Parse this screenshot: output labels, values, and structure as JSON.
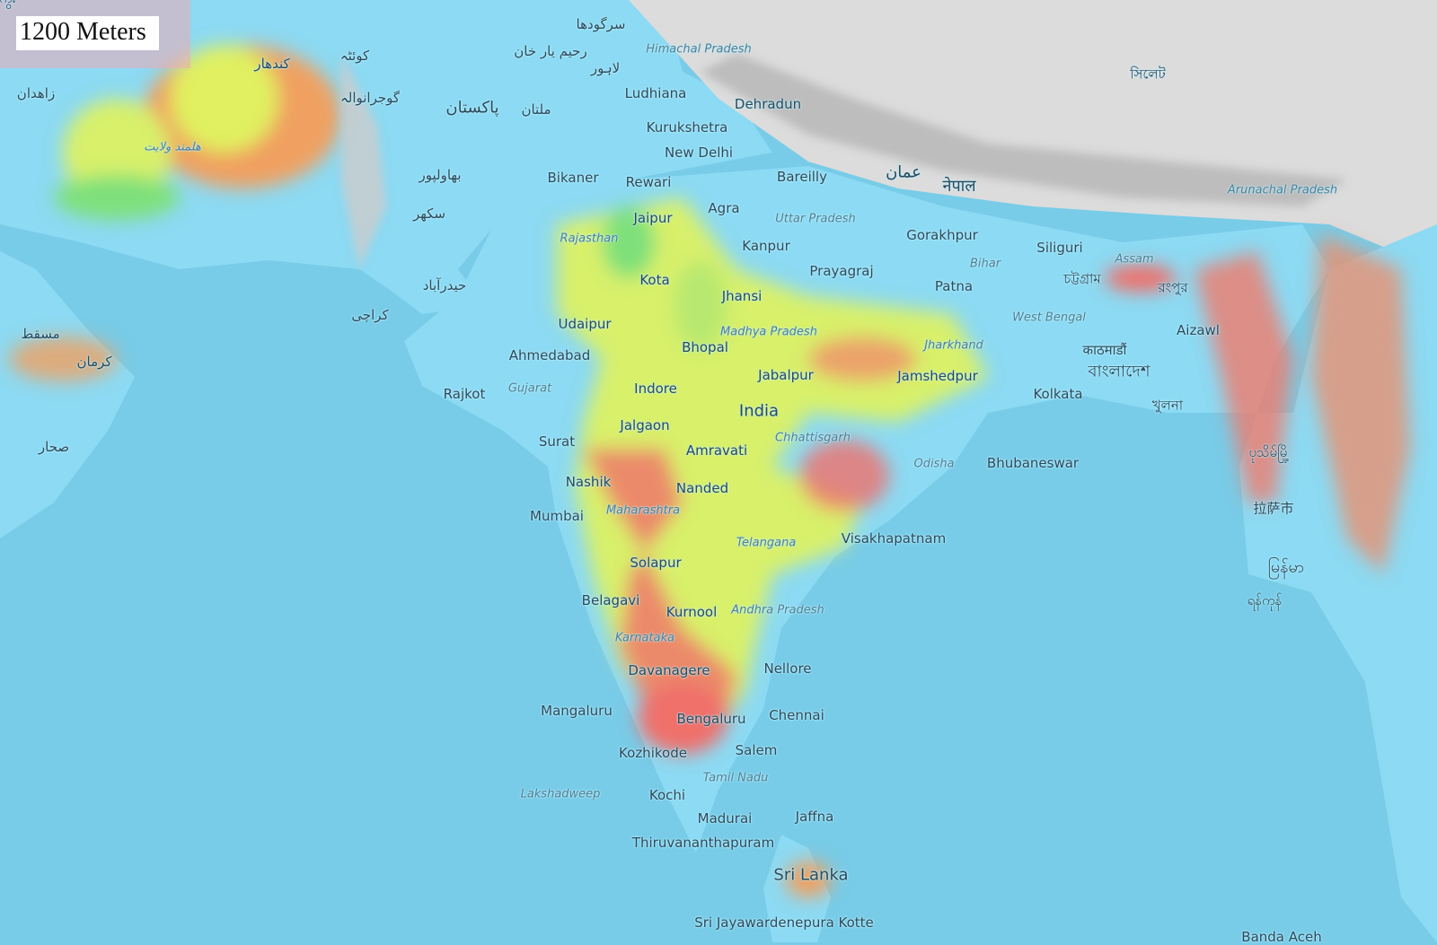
{
  "elevation_label": "1200 Meters",
  "colors": {
    "ocean": "#78cce8",
    "land_low": "#8cdaf3",
    "elev_mid": "#d8f06a",
    "elev_green": "#7ee07a",
    "elev_high": "#f0706a",
    "mountain": "#d8d8d8"
  },
  "labels": [
    {
      "text": "Ludhiana",
      "kind": "city"
    },
    {
      "text": "Kurukshetra",
      "kind": "city"
    },
    {
      "text": "New Delhi",
      "kind": "city"
    },
    {
      "text": "Dehradun",
      "kind": "city"
    },
    {
      "text": "Bikaner",
      "kind": "city"
    },
    {
      "text": "Rewari",
      "kind": "city"
    },
    {
      "text": "Bareilly",
      "kind": "city"
    },
    {
      "text": "Jaipur",
      "kind": "city"
    },
    {
      "text": "Agra",
      "kind": "city"
    },
    {
      "text": "Uttar Pradesh",
      "kind": "region"
    },
    {
      "text": "Rajasthan",
      "kind": "region"
    },
    {
      "text": "Kanpur",
      "kind": "city"
    },
    {
      "text": "Gorakhpur",
      "kind": "city"
    },
    {
      "text": "Siliguri",
      "kind": "city"
    },
    {
      "text": "Assam",
      "kind": "region"
    },
    {
      "text": "Bihar",
      "kind": "region"
    },
    {
      "text": "Prayagraj",
      "kind": "city"
    },
    {
      "text": "Kota",
      "kind": "city"
    },
    {
      "text": "Jhansi",
      "kind": "city"
    },
    {
      "text": "Patna",
      "kind": "city"
    },
    {
      "text": "Udaipur",
      "kind": "city"
    },
    {
      "text": "Madhya Pradesh",
      "kind": "region"
    },
    {
      "text": "West Bengal",
      "kind": "region"
    },
    {
      "text": "Aizawl",
      "kind": "city"
    },
    {
      "text": "Ahmedabad",
      "kind": "city"
    },
    {
      "text": "Bhopal",
      "kind": "city"
    },
    {
      "text": "Jharkhand",
      "kind": "region"
    },
    {
      "text": "Jabalpur",
      "kind": "city"
    },
    {
      "text": "Jamshedpur",
      "kind": "city"
    },
    {
      "text": "Rajkot",
      "kind": "city"
    },
    {
      "text": "Gujarat",
      "kind": "region"
    },
    {
      "text": "Indore",
      "kind": "city"
    },
    {
      "text": "Kolkata",
      "kind": "city"
    },
    {
      "text": "India",
      "kind": "country"
    },
    {
      "text": "Jalgaon",
      "kind": "city"
    },
    {
      "text": "Chhattisgarh",
      "kind": "region"
    },
    {
      "text": "Surat",
      "kind": "city"
    },
    {
      "text": "Amravati",
      "kind": "city"
    },
    {
      "text": "Odisha",
      "kind": "region"
    },
    {
      "text": "Bhubaneswar",
      "kind": "city"
    },
    {
      "text": "Nashik",
      "kind": "city"
    },
    {
      "text": "Nanded",
      "kind": "city"
    },
    {
      "text": "Mumbai",
      "kind": "city"
    },
    {
      "text": "Maharashtra",
      "kind": "region"
    },
    {
      "text": "Telangana",
      "kind": "region"
    },
    {
      "text": "Visakhapatnam",
      "kind": "city"
    },
    {
      "text": "Solapur",
      "kind": "city"
    },
    {
      "text": "Belagavi",
      "kind": "city"
    },
    {
      "text": "Kurnool",
      "kind": "city"
    },
    {
      "text": "Andhra Pradesh",
      "kind": "region"
    },
    {
      "text": "Karnataka",
      "kind": "region"
    },
    {
      "text": "Davanagere",
      "kind": "city"
    },
    {
      "text": "Nellore",
      "kind": "city"
    },
    {
      "text": "Mangaluru",
      "kind": "city"
    },
    {
      "text": "Bengaluru",
      "kind": "city"
    },
    {
      "text": "Chennai",
      "kind": "city"
    },
    {
      "text": "Kozhikode",
      "kind": "city"
    },
    {
      "text": "Salem",
      "kind": "city"
    },
    {
      "text": "Tamil Nadu",
      "kind": "region"
    },
    {
      "text": "Lakshadweep",
      "kind": "region"
    },
    {
      "text": "Kochi",
      "kind": "city"
    },
    {
      "text": "Madurai",
      "kind": "city"
    },
    {
      "text": "Jaffna",
      "kind": "city"
    },
    {
      "text": "Thiruvananthapuram",
      "kind": "city"
    },
    {
      "text": "Sri Lanka",
      "kind": "country"
    },
    {
      "text": "Sri Jayawardenepura Kotte",
      "kind": "city"
    },
    {
      "text": "Banda Aceh",
      "kind": "city"
    },
    {
      "text": "Arunachal Pradesh",
      "kind": "region"
    },
    {
      "text": "Himachal Pradesh",
      "kind": "region"
    },
    {
      "text": "پاکستان",
      "kind": "country"
    },
    {
      "text": "ملتان",
      "kind": "city"
    },
    {
      "text": "لاہور",
      "kind": "city"
    },
    {
      "text": "کراچی",
      "kind": "city"
    },
    {
      "text": "حیدرآباد",
      "kind": "city"
    },
    {
      "text": "سکھر",
      "kind": "city"
    },
    {
      "text": "بهاولپور",
      "kind": "city"
    },
    {
      "text": "رحیم یار خان",
      "kind": "city"
    },
    {
      "text": "سرگودھا",
      "kind": "city"
    },
    {
      "text": "گوجرانوالہ",
      "kind": "city"
    },
    {
      "text": "کوئٹہ",
      "kind": "city"
    },
    {
      "text": "کندهار",
      "kind": "city"
    },
    {
      "text": "هلمند ولایت",
      "kind": "region"
    },
    {
      "text": "زاهدان",
      "kind": "city"
    },
    {
      "text": "کرمان",
      "kind": "city"
    },
    {
      "text": "مسقط",
      "kind": "city"
    },
    {
      "text": "صحار",
      "kind": "city"
    },
    {
      "text": "عمان",
      "kind": "country"
    },
    {
      "text": "नेपाल",
      "kind": "country"
    },
    {
      "text": "काठमाडौं",
      "kind": "city"
    },
    {
      "text": "বাংলাদেশ",
      "kind": "country"
    },
    {
      "text": "খুলনা",
      "kind": "city"
    },
    {
      "text": "চট্টগ্রাম",
      "kind": "city"
    },
    {
      "text": "রংপুর",
      "kind": "city"
    },
    {
      "text": "সিলেট",
      "kind": "city"
    },
    {
      "text": "拉萨市",
      "kind": "city"
    },
    {
      "text": "မြန်မာ",
      "kind": "country"
    },
    {
      "text": "ရန်ကုန်",
      "kind": "city"
    },
    {
      "text": "ပုသိမ်မြို့",
      "kind": "city"
    },
    {
      "text": "မကွေး",
      "kind": "city"
    }
  ]
}
